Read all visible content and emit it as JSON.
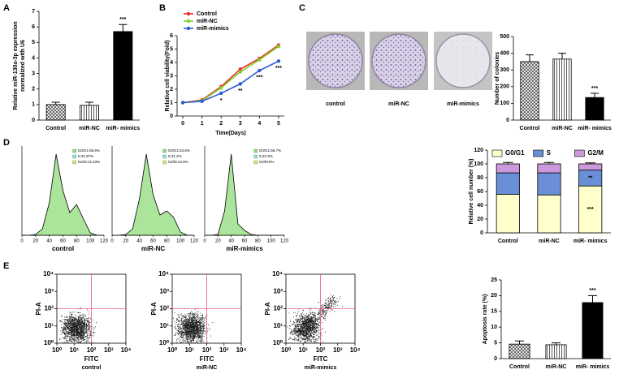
{
  "panels": [
    "A",
    "B",
    "C",
    "D",
    "E"
  ],
  "colony_images": [
    "control",
    "miR-NC",
    "miR-mimics"
  ],
  "chart_data": [
    {
      "type": "bar",
      "ylabel": [
        "Relative miR-130a-3p expression",
        "normalized with U6"
      ],
      "categories": [
        "Control",
        "miR-NC",
        "miR- mimics"
      ],
      "values": [
        1.0,
        0.95,
        5.7
      ],
      "errors": [
        0.15,
        0.2,
        0.45
      ],
      "patterns": [
        "crosshatch",
        "vertical",
        "solid"
      ],
      "color": "#000000",
      "ylim": [
        0,
        7
      ],
      "yticks": [
        0,
        1,
        2,
        3,
        4,
        5,
        6,
        7
      ],
      "annotations": [
        {
          "text": "***",
          "category": "miR- mimics"
        }
      ]
    },
    {
      "type": "line",
      "xlabel": "Time(Days)",
      "ylabel": "Relative cell viability(Fold)",
      "x": [
        0,
        1,
        2,
        3,
        4,
        5
      ],
      "xlim": [
        -0.3,
        5.3
      ],
      "xticks": [
        0,
        1,
        2,
        3,
        4,
        5
      ],
      "ylim": [
        0,
        6
      ],
      "yticks": [
        0,
        1,
        2,
        3,
        4,
        5,
        6
      ],
      "legend": "top-left",
      "series": [
        {
          "name": "Control",
          "color": "#e8312a",
          "values": [
            1.0,
            1.2,
            2.2,
            3.5,
            4.3,
            5.3
          ]
        },
        {
          "name": "miR-NC",
          "color": "#7fd12a",
          "values": [
            1.0,
            1.15,
            2.1,
            3.3,
            4.2,
            5.2
          ]
        },
        {
          "name": "miR-mimics",
          "color": "#2a5bd7",
          "values": [
            1.0,
            1.1,
            1.7,
            2.4,
            3.4,
            4.1
          ]
        }
      ],
      "annotations": [
        {
          "text": "*",
          "x": 2,
          "series": "miR-mimics"
        },
        {
          "text": "**",
          "x": 3,
          "series": "miR-mimics"
        },
        {
          "text": "***",
          "x": 4,
          "series": "miR-mimics"
        },
        {
          "text": "***",
          "x": 5,
          "series": "miR-mimics"
        }
      ]
    },
    {
      "type": "bar",
      "ylabel": [
        "Number of colonies"
      ],
      "categories": [
        "Control",
        "miR-NC",
        "miR- mimics"
      ],
      "values": [
        350,
        365,
        135
      ],
      "errors": [
        40,
        35,
        25
      ],
      "patterns": [
        "crosshatch",
        "vertical",
        "solid"
      ],
      "color": "#000000",
      "ylim": [
        0,
        500
      ],
      "yticks": [
        0,
        100,
        200,
        300,
        400,
        500
      ],
      "annotations": [
        {
          "text": "***",
          "category": "miR- mimics"
        }
      ]
    },
    {
      "type": "area",
      "xlabel": "control",
      "x": [
        0,
        10,
        20,
        30,
        40,
        50,
        60,
        70,
        80,
        90,
        100,
        110,
        120
      ],
      "values": [
        0,
        0,
        1,
        8,
        40,
        100,
        55,
        28,
        38,
        20,
        3,
        0,
        0
      ],
      "color": "#000000",
      "xlim": [
        0,
        120
      ],
      "xticks": [
        0,
        20,
        40,
        60,
        80,
        100,
        120
      ],
      "ylim": [
        0,
        110
      ],
      "phases": [
        {
          "label": "G0/G1:55.9%",
          "color": "#8fdc7a"
        },
        {
          "label": "S:31.87%",
          "color": "#8fe3e8"
        },
        {
          "label": "G2/M:12.23%",
          "color": "#e8e070"
        }
      ]
    },
    {
      "type": "area",
      "xlabel": "miR-NC",
      "x": [
        0,
        10,
        20,
        30,
        40,
        50,
        60,
        70,
        80,
        90,
        100,
        110,
        120
      ],
      "values": [
        0,
        0,
        1,
        8,
        45,
        100,
        50,
        25,
        30,
        22,
        4,
        0,
        0
      ],
      "color": "#000000",
      "xlim": [
        0,
        120
      ],
      "xticks": [
        0,
        20,
        40,
        60,
        80,
        100,
        120
      ],
      "ylim": [
        0,
        110
      ],
      "phases": [
        {
          "label": "G0/G1:54.6%",
          "color": "#8fdc7a"
        },
        {
          "label": "S:31.2%",
          "color": "#8fe3e8"
        },
        {
          "label": "G2/M:13.9%",
          "color": "#e8e070"
        }
      ]
    },
    {
      "type": "area",
      "xlabel": "miR-mimics",
      "x": [
        0,
        10,
        20,
        30,
        40,
        50,
        60,
        70,
        80,
        90,
        100,
        110,
        120
      ],
      "values": [
        0,
        0,
        1,
        30,
        100,
        14,
        6,
        1,
        0,
        0,
        0,
        0,
        0
      ],
      "color": "#000000",
      "xlim": [
        0,
        120
      ],
      "xticks": [
        0,
        20,
        40,
        60,
        80,
        100,
        120
      ],
      "ylim": [
        0,
        110
      ],
      "phases": [
        {
          "label": "G0/G1:68.7%",
          "color": "#8fdc7a"
        },
        {
          "label": "S:22.3%",
          "color": "#8fe3e8"
        },
        {
          "label": "G2/M:9%",
          "color": "#e8e070"
        }
      ]
    },
    {
      "type": "bar",
      "stacked": true,
      "ylabel": [
        "Relative cell number (%)"
      ],
      "categories": [
        "Control",
        "miR-NC",
        "miR- mimics"
      ],
      "series": [
        {
          "name": "G0/G1",
          "color": "#ffffcc",
          "values": [
            56,
            55,
            68
          ],
          "errors": [
            2,
            1.5,
            3
          ]
        },
        {
          "name": "S",
          "color": "#6b8fd6",
          "values": [
            31,
            32,
            23
          ],
          "errors": [
            2,
            2,
            2
          ]
        },
        {
          "name": "G2/M",
          "color": "#cc99dd",
          "values": [
            13,
            13,
            9
          ],
          "errors": [
            2,
            2,
            1.5
          ]
        }
      ],
      "ylim": [
        0,
        120
      ],
      "yticks": [
        0,
        20,
        40,
        60,
        80,
        100,
        120
      ],
      "legend": "top",
      "annotations": [
        {
          "text": "**",
          "category": "miR- mimics",
          "series": "S"
        },
        {
          "text": "***",
          "category": "miR- mimics",
          "series": "G0/G1"
        }
      ]
    },
    {
      "type": "scatter",
      "log_scale": true,
      "xlabel": "FITC",
      "subtitle": "control",
      "ylabel": "PI-A",
      "xlim": [
        1,
        10000
      ],
      "ylim": [
        1,
        10000
      ],
      "xticks": [
        {
          "value": 1,
          "label": "10⁰"
        },
        {
          "value": 10,
          "label": "10¹"
        },
        {
          "value": 100,
          "label": "10²"
        },
        {
          "value": 1000,
          "label": "10³"
        },
        {
          "value": 10000,
          "label": "10⁴"
        }
      ],
      "yticks": [
        {
          "value": 1,
          "label": "10⁰"
        },
        {
          "value": 10,
          "label": "10¹"
        },
        {
          "value": 100,
          "label": "10²"
        },
        {
          "value": 1000,
          "label": "10³"
        },
        {
          "value": 10000,
          "label": "10⁴"
        }
      ],
      "gate": {
        "x": 100,
        "y": 100
      },
      "gate_color": "#e75480"
    },
    {
      "type": "scatter",
      "log_scale": true,
      "xlabel": "FITC",
      "subtitle": "miR-NC",
      "ylabel": "PI-A",
      "xlim": [
        1,
        10000
      ],
      "ylim": [
        1,
        10000
      ],
      "xticks": [
        {
          "value": 1,
          "label": "10⁰"
        },
        {
          "value": 10,
          "label": "10¹"
        },
        {
          "value": 100,
          "label": "10²"
        },
        {
          "value": 1000,
          "label": "10³"
        },
        {
          "value": 10000,
          "label": "10⁴"
        }
      ],
      "yticks": [
        {
          "value": 1,
          "label": "10⁰"
        },
        {
          "value": 10,
          "label": "10¹"
        },
        {
          "value": 100,
          "label": "10²"
        },
        {
          "value": 1000,
          "label": "10³"
        },
        {
          "value": 10000,
          "label": "10⁴"
        }
      ],
      "gate": {
        "x": 100,
        "y": 100
      },
      "gate_color": "#e75480"
    },
    {
      "type": "scatter",
      "log_scale": true,
      "xlabel": "FITC",
      "subtitle": "miR-mimics",
      "ylabel": "PI-A",
      "xlim": [
        1,
        10000
      ],
      "ylim": [
        1,
        10000
      ],
      "xticks": [
        {
          "value": 1,
          "label": "10⁰"
        },
        {
          "value": 10,
          "label": "10¹"
        },
        {
          "value": 100,
          "label": "10²"
        },
        {
          "value": 1000,
          "label": "10³"
        },
        {
          "value": 10000,
          "label": "10⁴"
        }
      ],
      "yticks": [
        {
          "value": 1,
          "label": "10⁰"
        },
        {
          "value": 10,
          "label": "10¹"
        },
        {
          "value": 100,
          "label": "10²"
        },
        {
          "value": 1000,
          "label": "10³"
        },
        {
          "value": 10000,
          "label": "10⁴"
        }
      ],
      "gate": {
        "x": 100,
        "y": 100
      },
      "gate_color": "#e75480"
    },
    {
      "type": "bar",
      "ylabel": [
        "Apoptosis rate (%)"
      ],
      "categories": [
        "Control",
        "miR-NC",
        "miR- mimics"
      ],
      "values": [
        4.6,
        4.4,
        17.8
      ],
      "errors": [
        1.0,
        0.6,
        2.2
      ],
      "patterns": [
        "crosshatch",
        "vertical",
        "solid"
      ],
      "color": "#000000",
      "ylim": [
        0,
        25
      ],
      "yticks": [
        0,
        5,
        10,
        15,
        20,
        25
      ],
      "annotations": [
        {
          "text": "***",
          "category": "miR- mimics"
        }
      ]
    }
  ]
}
